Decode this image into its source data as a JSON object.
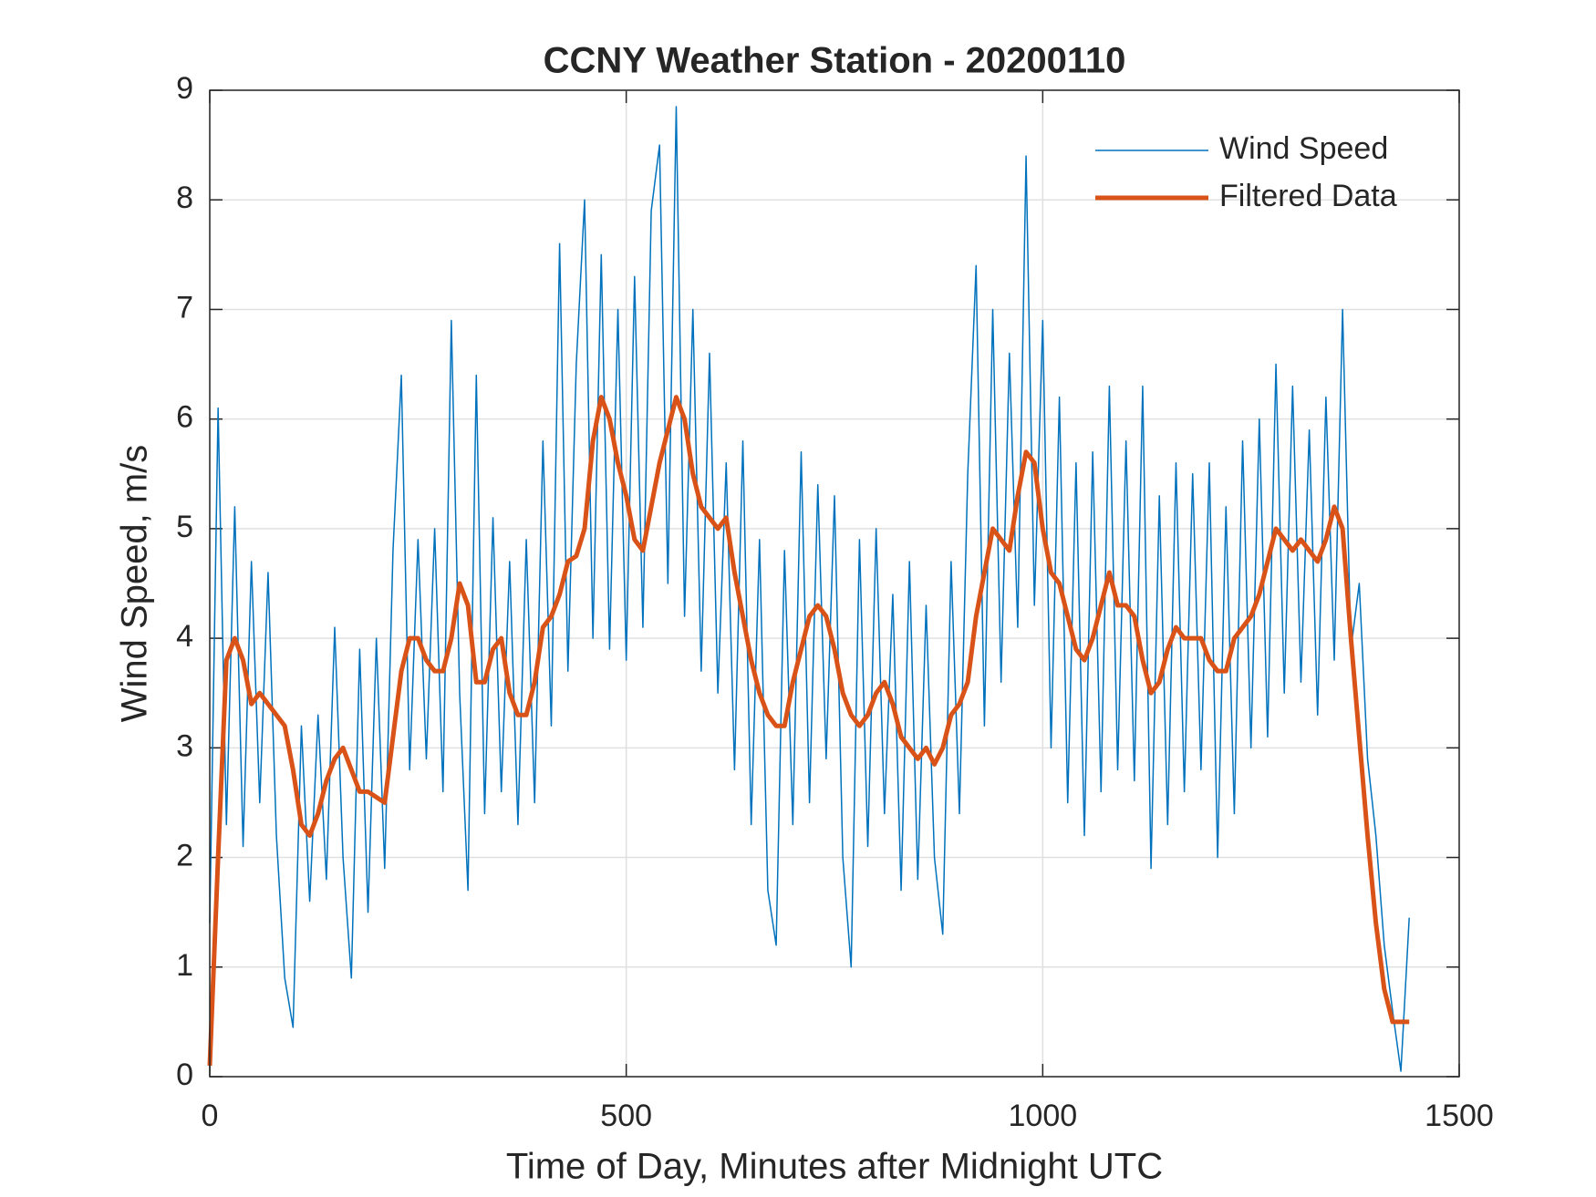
{
  "chart_data": {
    "type": "line",
    "title": "CCNY Weather Station - 20200110",
    "xlabel": "Time of Day, Minutes after Midnight UTC",
    "ylabel": "Wind Speed, m/s",
    "xlim": [
      0,
      1500
    ],
    "xticks": [
      0,
      500,
      1000,
      1500
    ],
    "ylim": [
      0,
      9
    ],
    "yticks": [
      0,
      1,
      2,
      3,
      4,
      5,
      6,
      7,
      8,
      9
    ],
    "grid": true,
    "legend": "upper-right",
    "x": [
      0,
      10,
      20,
      30,
      40,
      50,
      60,
      70,
      80,
      90,
      100,
      110,
      120,
      130,
      140,
      150,
      160,
      170,
      180,
      190,
      200,
      210,
      220,
      230,
      240,
      250,
      260,
      270,
      280,
      290,
      300,
      310,
      320,
      330,
      340,
      350,
      360,
      370,
      380,
      390,
      400,
      410,
      420,
      430,
      440,
      450,
      460,
      470,
      480,
      490,
      500,
      510,
      520,
      530,
      540,
      550,
      560,
      570,
      580,
      590,
      600,
      610,
      620,
      630,
      640,
      650,
      660,
      670,
      680,
      690,
      700,
      710,
      720,
      730,
      740,
      750,
      760,
      770,
      780,
      790,
      800,
      810,
      820,
      830,
      840,
      850,
      860,
      870,
      880,
      890,
      900,
      910,
      920,
      930,
      940,
      950,
      960,
      970,
      980,
      990,
      1000,
      1010,
      1020,
      1030,
      1040,
      1050,
      1060,
      1070,
      1080,
      1090,
      1100,
      1110,
      1120,
      1130,
      1140,
      1150,
      1160,
      1170,
      1180,
      1190,
      1200,
      1210,
      1220,
      1230,
      1240,
      1250,
      1260,
      1270,
      1280,
      1290,
      1300,
      1310,
      1320,
      1330,
      1340,
      1350,
      1360,
      1370,
      1380,
      1390,
      1400,
      1410,
      1420,
      1430,
      1440
    ],
    "series": [
      {
        "name": "Wind Speed",
        "color": "#0072bd",
        "width": 1.5,
        "values": [
          1.4,
          6.1,
          2.3,
          5.2,
          2.1,
          4.7,
          2.5,
          4.6,
          2.2,
          0.9,
          0.45,
          3.2,
          1.6,
          3.3,
          1.8,
          4.1,
          2.0,
          0.9,
          3.9,
          1.5,
          4.0,
          1.9,
          4.8,
          6.4,
          2.8,
          4.9,
          2.9,
          5.0,
          2.6,
          6.9,
          3.5,
          1.7,
          6.4,
          2.4,
          5.1,
          2.6,
          4.7,
          2.3,
          4.9,
          2.5,
          5.8,
          3.2,
          7.6,
          3.7,
          6.5,
          8.0,
          4.0,
          7.5,
          3.9,
          7.0,
          3.8,
          7.3,
          4.1,
          7.9,
          8.5,
          4.5,
          8.85,
          4.2,
          7.0,
          3.7,
          6.6,
          3.5,
          5.6,
          2.8,
          5.8,
          2.3,
          4.9,
          1.7,
          1.2,
          4.8,
          2.3,
          5.7,
          2.5,
          5.4,
          2.9,
          5.3,
          2.0,
          1.0,
          4.9,
          2.1,
          5.0,
          2.4,
          4.4,
          1.7,
          4.7,
          1.8,
          4.3,
          2.0,
          1.3,
          4.7,
          2.4,
          5.5,
          7.4,
          3.2,
          7.0,
          3.6,
          6.6,
          4.1,
          8.4,
          4.3,
          6.9,
          3.0,
          6.2,
          2.5,
          5.6,
          2.2,
          5.7,
          2.6,
          6.3,
          2.8,
          5.8,
          2.7,
          6.3,
          1.9,
          5.3,
          2.3,
          5.6,
          2.6,
          5.5,
          2.8,
          5.6,
          2.0,
          5.2,
          2.4,
          5.8,
          3.0,
          6.0,
          3.1,
          6.5,
          3.5,
          6.3,
          3.6,
          5.9,
          3.3,
          6.2,
          3.8,
          7.0,
          3.9,
          4.5,
          2.9,
          2.2,
          1.2,
          0.6,
          0.05,
          1.45
        ]
      },
      {
        "name": "Filtered Data",
        "color": "#d95319",
        "width": 5,
        "values": [
          0.1,
          2.0,
          3.8,
          4.0,
          3.8,
          3.4,
          3.5,
          3.4,
          3.3,
          3.2,
          2.8,
          2.3,
          2.2,
          2.4,
          2.7,
          2.9,
          3.0,
          2.8,
          2.6,
          2.6,
          2.55,
          2.5,
          3.1,
          3.7,
          4.0,
          4.0,
          3.8,
          3.7,
          3.7,
          4.0,
          4.5,
          4.3,
          3.6,
          3.6,
          3.9,
          4.0,
          3.5,
          3.3,
          3.3,
          3.6,
          4.1,
          4.2,
          4.4,
          4.7,
          4.75,
          5.0,
          5.8,
          6.2,
          6.0,
          5.6,
          5.3,
          4.9,
          4.8,
          5.2,
          5.6,
          5.9,
          6.2,
          6.0,
          5.5,
          5.2,
          5.1,
          5.0,
          5.1,
          4.6,
          4.2,
          3.8,
          3.5,
          3.3,
          3.2,
          3.2,
          3.6,
          3.9,
          4.2,
          4.3,
          4.2,
          3.9,
          3.5,
          3.3,
          3.2,
          3.3,
          3.5,
          3.6,
          3.4,
          3.1,
          3.0,
          2.9,
          3.0,
          2.85,
          3.0,
          3.3,
          3.4,
          3.6,
          4.2,
          4.6,
          5.0,
          4.9,
          4.8,
          5.3,
          5.7,
          5.6,
          5.0,
          4.6,
          4.5,
          4.2,
          3.9,
          3.8,
          4.0,
          4.3,
          4.6,
          4.3,
          4.3,
          4.2,
          3.8,
          3.5,
          3.6,
          3.9,
          4.1,
          4.0,
          4.0,
          4.0,
          3.8,
          3.7,
          3.7,
          4.0,
          4.1,
          4.2,
          4.4,
          4.7,
          5.0,
          4.9,
          4.8,
          4.9,
          4.8,
          4.7,
          4.9,
          5.2,
          5.0,
          4.0,
          3.1,
          2.2,
          1.4,
          0.8,
          0.5,
          0.5,
          0.5
        ]
      }
    ]
  }
}
